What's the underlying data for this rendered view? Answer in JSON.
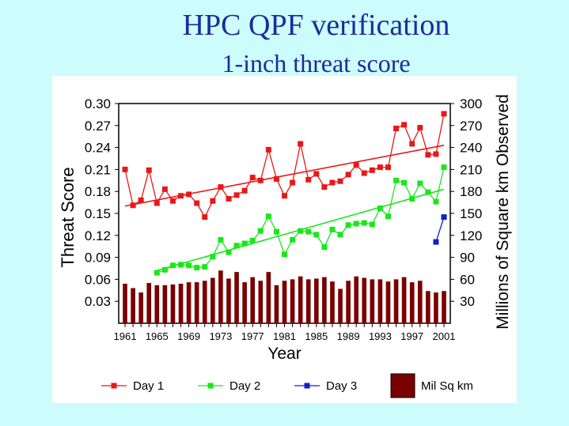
{
  "title": "HPC QPF verification",
  "subtitle": "1-inch threat score",
  "chart_data": {
    "type": "line",
    "xlabel": "Year",
    "ylabel_left": "Threat Score",
    "ylabel_right": "Millions of Square km Observed",
    "x_tick_labels": [
      "1961",
      "1965",
      "1969",
      "1973",
      "1977",
      "1981",
      "1985",
      "1989",
      "1993",
      "1997",
      "2001"
    ],
    "y_left_tick_labels": [
      "0.03",
      "0.06",
      "0.09",
      "0.12",
      "0.15",
      "0.18",
      "0.21",
      "0.24",
      "0.27",
      "0.30"
    ],
    "y_right_tick_labels": [
      "30",
      "60",
      "90",
      "120",
      "150",
      "180",
      "210",
      "240",
      "270",
      "300"
    ],
    "ylim_left": [
      0,
      0.3
    ],
    "ylim_right": [
      0,
      300
    ],
    "xlim": [
      1961,
      2001
    ],
    "legend_placement": "bottom",
    "legend": [
      {
        "label": "Day 1",
        "color": "#e81818",
        "kind": "line"
      },
      {
        "label": "Day 2",
        "color": "#18e818",
        "kind": "line"
      },
      {
        "label": "Day 3",
        "color": "#1020c8",
        "kind": "line"
      },
      {
        "label": "Mil Sq km",
        "color": "#7a0000",
        "kind": "bar"
      }
    ],
    "series": [
      {
        "name": "Day 1",
        "color": "#e81818",
        "x": [
          1961,
          1962,
          1963,
          1964,
          1965,
          1966,
          1967,
          1968,
          1969,
          1970,
          1971,
          1972,
          1973,
          1974,
          1975,
          1976,
          1977,
          1978,
          1979,
          1980,
          1981,
          1982,
          1983,
          1984,
          1985,
          1986,
          1987,
          1988,
          1989,
          1990,
          1991,
          1992,
          1993,
          1994,
          1995,
          1996,
          1997,
          1998,
          1999,
          2000,
          2001
        ],
        "values": [
          0.21,
          0.161,
          0.168,
          0.209,
          0.164,
          0.183,
          0.167,
          0.174,
          0.176,
          0.164,
          0.145,
          0.167,
          0.186,
          0.17,
          0.175,
          0.181,
          0.199,
          0.195,
          0.237,
          0.197,
          0.174,
          0.192,
          0.245,
          0.196,
          0.204,
          0.186,
          0.192,
          0.194,
          0.203,
          0.216,
          0.205,
          0.209,
          0.213,
          0.213,
          0.266,
          0.271,
          0.245,
          0.267,
          0.23,
          0.231,
          0.286
        ],
        "trend": [
          0.16,
          0.243
        ]
      },
      {
        "name": "Day 2",
        "color": "#18e818",
        "x": [
          1965,
          1966,
          1967,
          1968,
          1969,
          1970,
          1971,
          1972,
          1973,
          1974,
          1975,
          1976,
          1977,
          1978,
          1979,
          1980,
          1981,
          1982,
          1983,
          1984,
          1985,
          1986,
          1987,
          1988,
          1989,
          1990,
          1991,
          1992,
          1993,
          1994,
          1995,
          1996,
          1997,
          1998,
          1999,
          2000,
          2001
        ],
        "values": [
          0.069,
          0.073,
          0.079,
          0.08,
          0.079,
          0.076,
          0.077,
          0.091,
          0.114,
          0.097,
          0.106,
          0.109,
          0.113,
          0.126,
          0.146,
          0.125,
          0.094,
          0.114,
          0.126,
          0.125,
          0.121,
          0.104,
          0.128,
          0.121,
          0.134,
          0.136,
          0.137,
          0.135,
          0.157,
          0.146,
          0.195,
          0.192,
          0.17,
          0.191,
          0.179,
          0.166,
          0.213
        ],
        "trend_x": [
          1965,
          2001
        ],
        "trend": [
          0.072,
          0.183
        ]
      },
      {
        "name": "Day 3",
        "color": "#1020c8",
        "x": [
          2000,
          2001
        ],
        "values": [
          0.111,
          0.145
        ]
      }
    ],
    "bars": {
      "name": "Mil Sq km",
      "color": "#7a0000",
      "x": [
        1961,
        1962,
        1963,
        1964,
        1965,
        1966,
        1967,
        1968,
        1969,
        1970,
        1971,
        1972,
        1973,
        1974,
        1975,
        1976,
        1977,
        1978,
        1979,
        1980,
        1981,
        1982,
        1983,
        1984,
        1985,
        1986,
        1987,
        1988,
        1989,
        1990,
        1991,
        1992,
        1993,
        1994,
        1995,
        1996,
        1997,
        1998,
        1999,
        2000,
        2001
      ],
      "values": [
        54,
        48,
        42,
        55,
        52,
        52,
        53,
        54,
        56,
        56,
        58,
        62,
        72,
        61,
        70,
        56,
        63,
        58,
        70,
        52,
        58,
        60,
        64,
        60,
        61,
        63,
        57,
        47,
        58,
        64,
        62,
        60,
        60,
        57,
        60,
        63,
        56,
        58,
        44,
        42,
        44
      ]
    }
  }
}
